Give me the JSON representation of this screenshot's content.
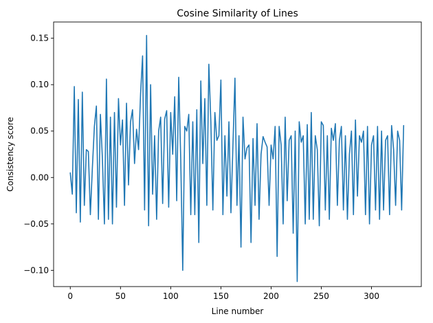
{
  "chart_data": {
    "type": "line",
    "title": "Cosine Similarity of Lines",
    "xlabel": "Line number",
    "ylabel": "Consistency score",
    "xlim": [
      -16.6,
      349.6
    ],
    "ylim": [
      -0.1175,
      0.1675
    ],
    "xticks": [
      0,
      50,
      100,
      150,
      200,
      250,
      300
    ],
    "xtick_labels": [
      "0",
      "50",
      "100",
      "150",
      "200",
      "250",
      "300"
    ],
    "yticks": [
      -0.1,
      -0.05,
      0.0,
      0.05,
      0.1,
      0.15
    ],
    "ytick_labels": [
      "−0.10",
      "−0.05",
      "0.00",
      "0.05",
      "0.10",
      "0.15"
    ],
    "grid": false,
    "legend": "none",
    "series": [
      {
        "color": "#1f77b4",
        "x": [
          0,
          2,
          4,
          6,
          8,
          10,
          12,
          14,
          16,
          18,
          20,
          22,
          24,
          26,
          28,
          30,
          32,
          34,
          36,
          38,
          40,
          42,
          44,
          46,
          48,
          50,
          52,
          54,
          56,
          58,
          60,
          62,
          64,
          66,
          68,
          70,
          72,
          74,
          76,
          78,
          80,
          82,
          84,
          86,
          88,
          90,
          92,
          94,
          96,
          98,
          100,
          102,
          104,
          106,
          108,
          110,
          112,
          114,
          116,
          118,
          120,
          122,
          124,
          126,
          128,
          130,
          132,
          134,
          136,
          138,
          140,
          142,
          144,
          146,
          148,
          150,
          152,
          154,
          156,
          158,
          160,
          162,
          164,
          166,
          168,
          170,
          172,
          174,
          176,
          178,
          180,
          182,
          184,
          186,
          188,
          190,
          192,
          194,
          196,
          198,
          200,
          202,
          204,
          206,
          208,
          210,
          212,
          214,
          216,
          218,
          220,
          222,
          224,
          226,
          228,
          230,
          232,
          234,
          236,
          238,
          240,
          242,
          244,
          246,
          248,
          250,
          252,
          254,
          256,
          258,
          260,
          262,
          264,
          266,
          268,
          270,
          272,
          274,
          276,
          278,
          280,
          282,
          284,
          286,
          288,
          290,
          292,
          294,
          296,
          298,
          300,
          302,
          304,
          306,
          308,
          310,
          312,
          314,
          316,
          318,
          320,
          322,
          324,
          326,
          328,
          330,
          332
        ],
        "y": [
          0.005,
          -0.018,
          0.098,
          -0.038,
          0.084,
          -0.048,
          0.092,
          -0.03,
          0.03,
          0.028,
          -0.04,
          0.01,
          0.055,
          0.077,
          -0.045,
          0.068,
          0.02,
          -0.05,
          0.106,
          -0.045,
          0.065,
          -0.05,
          0.07,
          -0.032,
          0.085,
          0.035,
          0.062,
          -0.03,
          0.08,
          -0.008,
          0.06,
          0.073,
          0.015,
          0.052,
          0.03,
          0.09,
          0.131,
          -0.035,
          0.153,
          -0.052,
          0.1,
          -0.018,
          0.045,
          -0.045,
          0.05,
          0.065,
          -0.028,
          0.063,
          0.072,
          -0.032,
          0.07,
          0.025,
          0.087,
          -0.025,
          0.108,
          0.02,
          -0.1,
          0.055,
          0.05,
          0.068,
          -0.04,
          0.06,
          -0.04,
          0.073,
          -0.07,
          0.104,
          0.015,
          0.085,
          -0.03,
          0.122,
          0.06,
          -0.035,
          0.07,
          0.04,
          0.045,
          0.105,
          -0.04,
          0.045,
          -0.02,
          0.06,
          -0.038,
          0.035,
          0.107,
          -0.03,
          0.045,
          -0.075,
          0.065,
          0.02,
          0.032,
          0.035,
          -0.07,
          0.042,
          -0.03,
          0.058,
          -0.045,
          0.025,
          0.044,
          0.038,
          0.033,
          -0.03,
          0.035,
          0.02,
          0.055,
          -0.085,
          0.055,
          0.035,
          -0.05,
          0.065,
          -0.025,
          0.04,
          0.045,
          -0.06,
          0.05,
          -0.112,
          0.06,
          0.038,
          0.045,
          -0.05,
          0.057,
          -0.045,
          0.07,
          -0.045,
          0.045,
          0.03,
          -0.052,
          0.06,
          0.056,
          -0.035,
          0.045,
          -0.045,
          0.053,
          0.04,
          0.058,
          -0.03,
          0.04,
          0.055,
          -0.035,
          0.045,
          -0.045,
          0.025,
          0.05,
          -0.04,
          0.062,
          -0.02,
          0.045,
          0.038,
          0.05,
          -0.04,
          0.055,
          -0.05,
          0.035,
          0.045,
          -0.035,
          0.055,
          -0.045,
          0.05,
          -0.035,
          0.04,
          0.045,
          -0.04,
          0.056,
          0.03,
          -0.03,
          0.05,
          0.04,
          -0.035,
          0.056
        ]
      }
    ]
  }
}
